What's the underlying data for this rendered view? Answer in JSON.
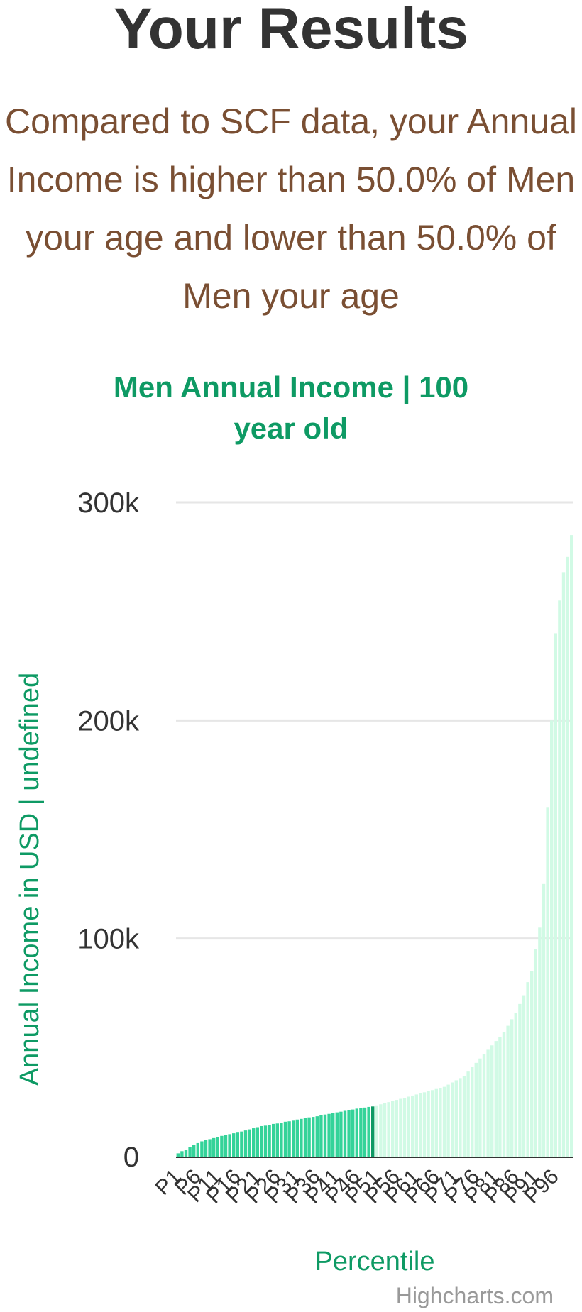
{
  "page": {
    "title": "Your Results",
    "summary": "Compared to SCF data, your Annual Income is higher than 50.0% of Men your age and lower than 50.0% of Men your age",
    "credit": "Highcharts.com"
  },
  "colors": {
    "title": "#333333",
    "summary": "#7a4f33",
    "chart_title": "#0e9a64",
    "axis_label": "#0e9a64",
    "bar_below": "#34d399",
    "bar_user": "#0e9a64",
    "bar_above": "#d1fae5",
    "gridline": "#e6e6e6",
    "tick_label": "#333333"
  },
  "chart_data": {
    "type": "bar",
    "title": "Men Annual Income | 100 year old",
    "xlabel": "Percentile",
    "ylabel": "Annual Income in USD | undefined",
    "ylim": [
      0,
      300000
    ],
    "yticks": [
      0,
      100000,
      200000,
      300000
    ],
    "ytick_labels": [
      "0",
      "100k",
      "200k",
      "300k"
    ],
    "user_percentile": "P50",
    "grid": true,
    "categories": [
      "P1",
      "P2",
      "P3",
      "P4",
      "P5",
      "P6",
      "P7",
      "P8",
      "P9",
      "P10",
      "P11",
      "P12",
      "P13",
      "P14",
      "P15",
      "P16",
      "P17",
      "P18",
      "P19",
      "P20",
      "P21",
      "P22",
      "P23",
      "P24",
      "P25",
      "P26",
      "P27",
      "P28",
      "P29",
      "P30",
      "P31",
      "P32",
      "P33",
      "P34",
      "P35",
      "P36",
      "P37",
      "P38",
      "P39",
      "P40",
      "P41",
      "P42",
      "P43",
      "P44",
      "P45",
      "P46",
      "P47",
      "P48",
      "P49",
      "P50",
      "P51",
      "P52",
      "P53",
      "P54",
      "P55",
      "P56",
      "P57",
      "P58",
      "P59",
      "P60",
      "P61",
      "P62",
      "P63",
      "P64",
      "P65",
      "P66",
      "P67",
      "P68",
      "P69",
      "P70",
      "P71",
      "P72",
      "P73",
      "P74",
      "P75",
      "P76",
      "P77",
      "P78",
      "P79",
      "P80",
      "P81",
      "P82",
      "P83",
      "P84",
      "P85",
      "P86",
      "P87",
      "P88",
      "P89",
      "P90",
      "P91",
      "P92",
      "P93",
      "P94",
      "P95",
      "P96",
      "P97",
      "P98",
      "P99",
      "P100"
    ],
    "xtick_labels": [
      "P1",
      "P6",
      "P11",
      "P16",
      "P21",
      "P26",
      "P31",
      "P36",
      "P41",
      "P46",
      "P51",
      "P56",
      "P61",
      "P66",
      "P71",
      "P76",
      "P81",
      "P86",
      "P91",
      "P96"
    ],
    "values": [
      1500,
      2500,
      3000,
      4500,
      5500,
      6200,
      7000,
      7500,
      8000,
      8500,
      9000,
      9500,
      10000,
      10300,
      10700,
      11000,
      11500,
      12000,
      12500,
      13000,
      13500,
      14000,
      14200,
      14500,
      15000,
      15200,
      15500,
      16000,
      16200,
      16500,
      17000,
      17300,
      17600,
      18000,
      18200,
      18500,
      19000,
      19300,
      19600,
      20000,
      20300,
      20600,
      21000,
      21300,
      21600,
      22000,
      22200,
      22500,
      22800,
      23000,
      23500,
      24000,
      24500,
      25000,
      25500,
      26000,
      26500,
      27000,
      27500,
      28000,
      28500,
      29000,
      29500,
      30000,
      30500,
      31000,
      31500,
      32000,
      33000,
      34000,
      35000,
      36000,
      37000,
      39000,
      41000,
      43000,
      45000,
      47000,
      49000,
      51000,
      53000,
      55000,
      57000,
      60000,
      63000,
      66000,
      70000,
      74000,
      80000,
      85000,
      95000,
      105000,
      125000,
      160000,
      200000,
      240000,
      255000,
      268000,
      275000,
      285000
    ]
  }
}
